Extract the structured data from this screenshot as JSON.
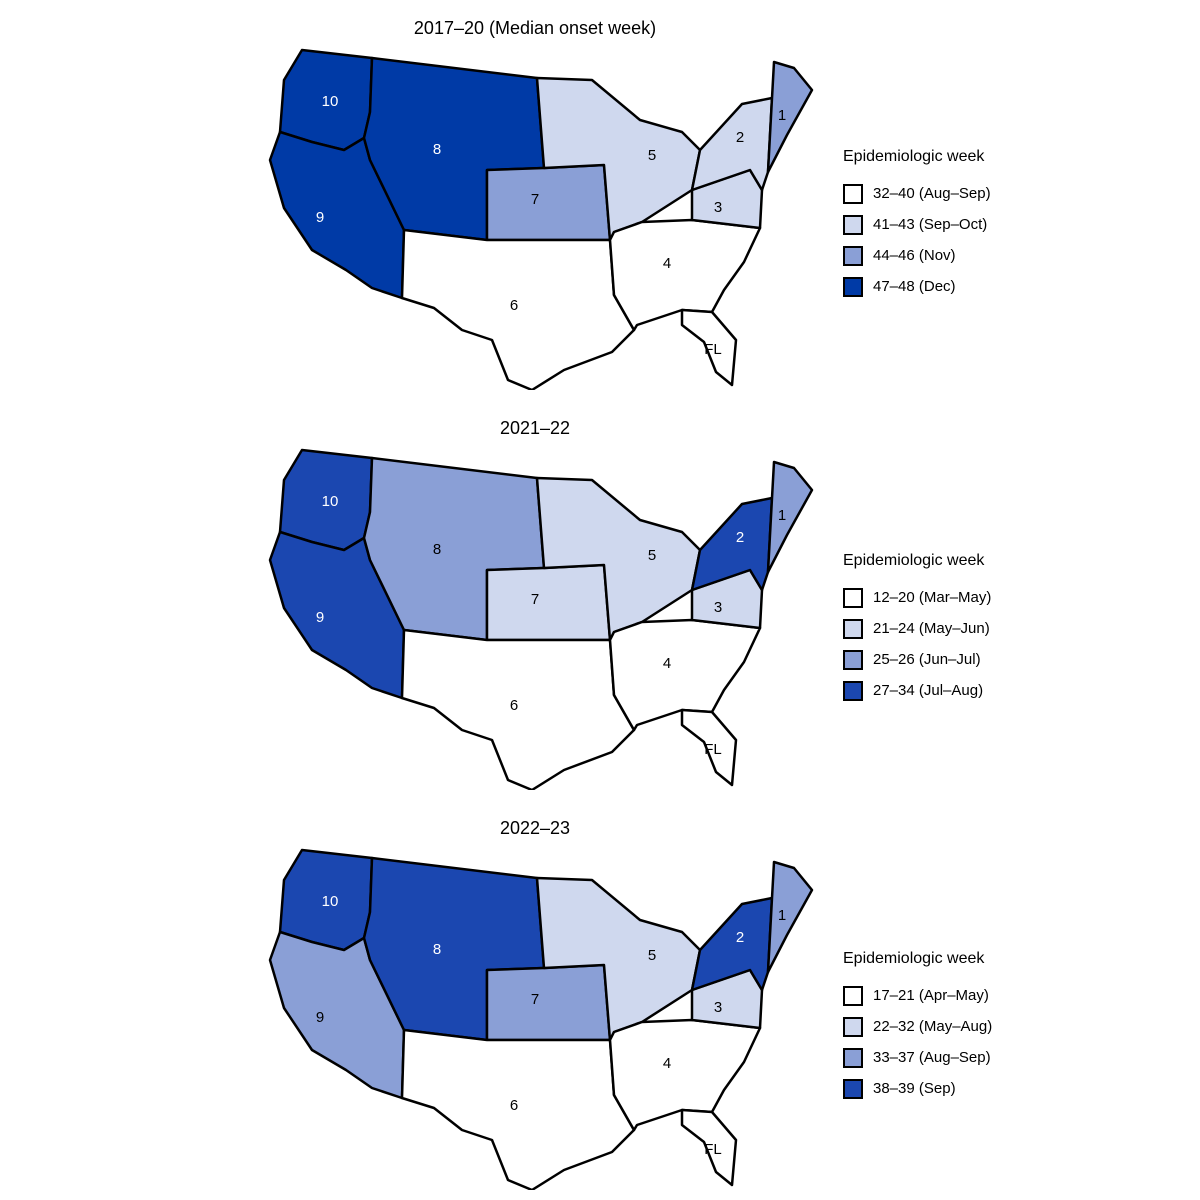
{
  "panels": [
    {
      "title": "2017–20 (Median onset week)",
      "legend_title": "Epidemiologic week",
      "legend": [
        {
          "label": "32–40 (Aug–Sep)",
          "color": "#ffffff"
        },
        {
          "label": "41–43 (Sep–Oct)",
          "color": "#cfd8ee"
        },
        {
          "label": "44–46 (Nov)",
          "color": "#8a9fd6"
        },
        {
          "label": "47–48 (Dec)",
          "color": "#003aa6"
        }
      ],
      "regions": {
        "r1": 2,
        "r2": 1,
        "r3": 1,
        "r4": 0,
        "r5": 1,
        "r6": 0,
        "r7": 2,
        "r8": 3,
        "r9": 3,
        "r10": 3,
        "fl": 0
      },
      "labels": {
        "r1": "1",
        "r2": "2",
        "r3": "3",
        "r4": "4",
        "r5": "5",
        "r6": "6",
        "r7": "7",
        "r8": "8",
        "r9": "9",
        "r10": "10",
        "fl": "FL"
      }
    },
    {
      "title": "2021–22",
      "legend_title": "Epidemiologic week",
      "legend": [
        {
          "label": "12–20 (Mar–May)",
          "color": "#ffffff"
        },
        {
          "label": "21–24 (May–Jun)",
          "color": "#cfd8ee"
        },
        {
          "label": "25–26 (Jun–Jul)",
          "color": "#8a9fd6"
        },
        {
          "label": "27–34 (Jul–Aug)",
          "color": "#1b47b0"
        }
      ],
      "regions": {
        "r1": 2,
        "r2": 3,
        "r3": 1,
        "r4": 0,
        "r5": 1,
        "r6": 0,
        "r7": 1,
        "r8": 2,
        "r9": 3,
        "r10": 3,
        "fl": 0
      },
      "labels": {
        "r1": "1",
        "r2": "2",
        "r3": "3",
        "r4": "4",
        "r5": "5",
        "r6": "6",
        "r7": "7",
        "r8": "8",
        "r9": "9",
        "r10": "10",
        "fl": "FL"
      }
    },
    {
      "title": "2022–23",
      "legend_title": "Epidemiologic week",
      "legend": [
        {
          "label": "17–21 (Apr–May)",
          "color": "#ffffff"
        },
        {
          "label": "22–32 (May–Aug)",
          "color": "#cfd8ee"
        },
        {
          "label": "33–37 (Aug–Sep)",
          "color": "#8a9fd6"
        },
        {
          "label": "38–39 (Sep)",
          "color": "#1b47b0"
        }
      ],
      "regions": {
        "r1": 2,
        "r2": 3,
        "r3": 1,
        "r4": 0,
        "r5": 1,
        "r6": 0,
        "r7": 2,
        "r8": 3,
        "r9": 2,
        "r10": 3,
        "fl": 0
      },
      "labels": {
        "r1": "1",
        "r2": "2",
        "r3": "3",
        "r4": "4",
        "r5": "5",
        "r6": "6",
        "r7": "7",
        "r8": "8",
        "r9": "9",
        "r10": "10",
        "fl": "FL"
      }
    }
  ]
}
